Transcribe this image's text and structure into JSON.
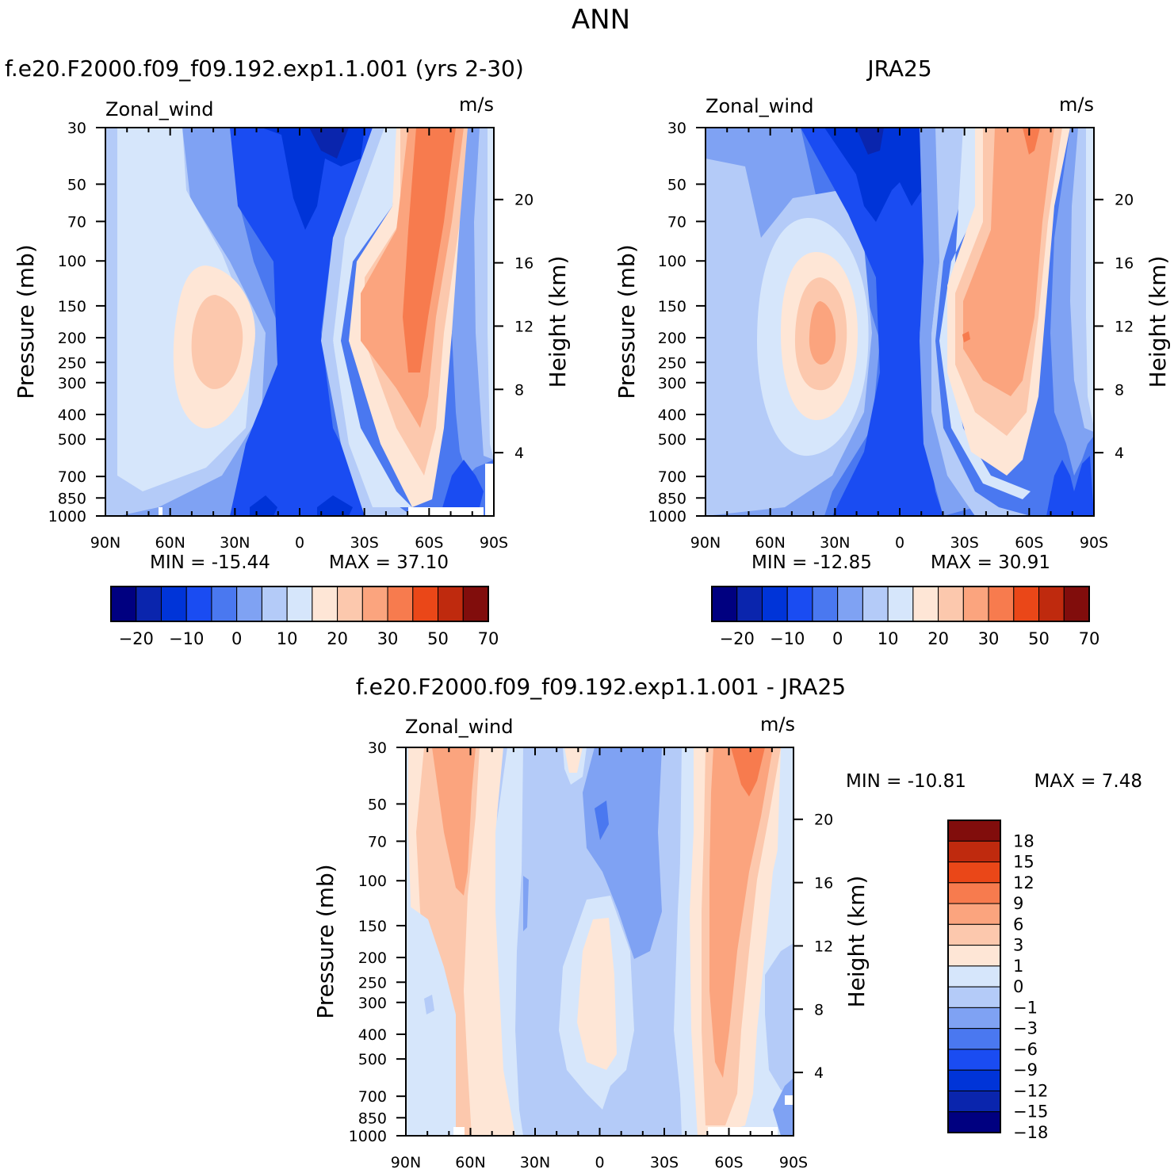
{
  "page_title": "ANN",
  "scale_colors": {
    "top": [
      "#000080",
      "#0a25ad",
      "#0034d8",
      "#1a4cf2",
      "#4a78f0",
      "#7fa2f3",
      "#b4cbf8",
      "#d6e6fb",
      "#fee6d6",
      "#fcc8ad",
      "#fba47e",
      "#f77b4e",
      "#ea4718",
      "#bf2a0e",
      "#810d0c"
    ],
    "bottom": [
      "#000080",
      "#0a25ad",
      "#0034d8",
      "#1a4cf2",
      "#4a78f0",
      "#7fa2f3",
      "#b4cbf8",
      "#d6e6fb",
      "#fee6d6",
      "#fcc8ad",
      "#fba47e",
      "#f77b4e",
      "#ea4718",
      "#bf2a0e",
      "#810d0c"
    ]
  },
  "chart_data": [
    {
      "type": "heatmap",
      "title": "f.e20.F2000.f09_f09.192.exp1.1.001 (yrs 2-30)",
      "variable": "Zonal_wind",
      "units": "m/s",
      "xlabel": "",
      "ylabel": "Pressure (mb)",
      "y2label": "Height (km)",
      "x_ticks": [
        "90N",
        "60N",
        "30N",
        "0",
        "30S",
        "60S",
        "90S"
      ],
      "x_lim": [
        90,
        -90
      ],
      "y_ticks": [
        "30",
        "50",
        "70",
        "100",
        "150",
        "200",
        "250",
        "300",
        "400",
        "500",
        "700",
        "850",
        "1000"
      ],
      "y_lim": [
        1000,
        30
      ],
      "y_scale": "log",
      "y2_ticks": [
        "4",
        "8",
        "12",
        "16",
        "20"
      ],
      "min_label": "MIN = -15.44",
      "max_label": "MAX = 37.10",
      "min": -15.44,
      "max": 37.1,
      "colorbar_labels": [
        "-20",
        "-10",
        "0",
        "10",
        "20",
        "30",
        "50",
        "70"
      ],
      "grid": false
    },
    {
      "type": "heatmap",
      "title": "JRA25",
      "variable": "Zonal_wind",
      "units": "m/s",
      "xlabel": "",
      "ylabel": "Pressure (mb)",
      "y2label": "Height (km)",
      "x_ticks": [
        "90N",
        "60N",
        "30N",
        "0",
        "30S",
        "60S",
        "90S"
      ],
      "x_lim": [
        90,
        -90
      ],
      "y_ticks": [
        "30",
        "50",
        "70",
        "100",
        "150",
        "200",
        "250",
        "300",
        "400",
        "500",
        "700",
        "850",
        "1000"
      ],
      "y_lim": [
        1000,
        30
      ],
      "y_scale": "log",
      "y2_ticks": [
        "4",
        "8",
        "12",
        "16",
        "20"
      ],
      "min_label": "MIN = -12.85",
      "max_label": "MAX = 30.91",
      "min": -12.85,
      "max": 30.91,
      "colorbar_labels": [
        "-20",
        "-10",
        "0",
        "10",
        "20",
        "30",
        "50",
        "70"
      ],
      "grid": false
    },
    {
      "type": "heatmap",
      "title": "f.e20.F2000.f09_f09.192.exp1.1.001 - JRA25",
      "variable": "Zonal_wind",
      "units": "m/s",
      "xlabel": "",
      "ylabel": "Pressure (mb)",
      "y2label": "Height (km)",
      "x_ticks": [
        "90N",
        "60N",
        "30N",
        "0",
        "30S",
        "60S",
        "90S"
      ],
      "x_lim": [
        90,
        -90
      ],
      "y_ticks": [
        "30",
        "50",
        "70",
        "100",
        "150",
        "200",
        "250",
        "300",
        "400",
        "500",
        "700",
        "850",
        "1000"
      ],
      "y_lim": [
        1000,
        30
      ],
      "y_scale": "log",
      "y2_ticks": [
        "4",
        "8",
        "12",
        "16",
        "20"
      ],
      "min_label": "MIN = -10.81",
      "max_label": "MAX = 7.48",
      "min": -10.81,
      "max": 7.48,
      "colorbar_labels": [
        "18",
        "15",
        "12",
        "9",
        "6",
        "3",
        "1",
        "0",
        "-1",
        "-3",
        "-6",
        "-9",
        "-12",
        "-15",
        "-18"
      ],
      "grid": false
    }
  ]
}
